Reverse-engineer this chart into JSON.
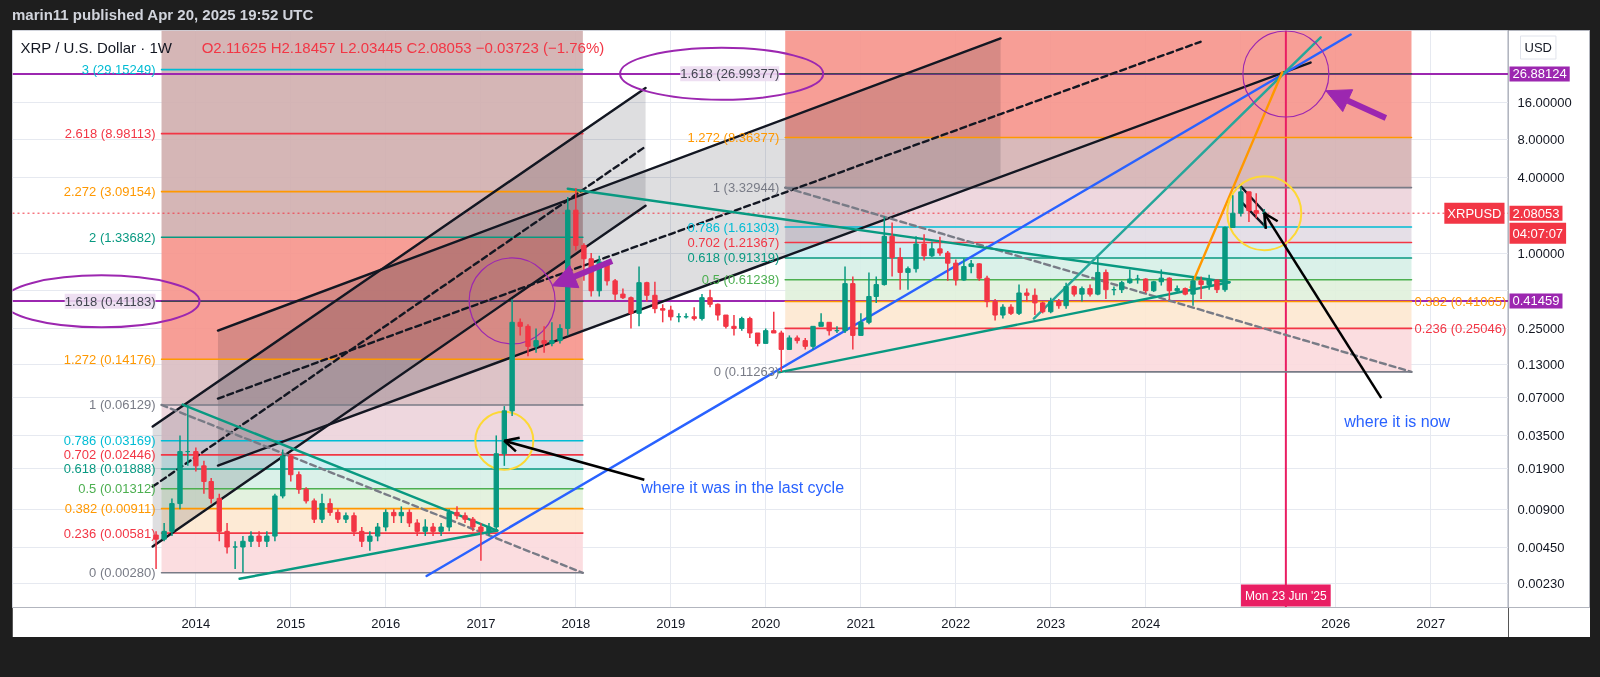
{
  "chart_data": {
    "type": "candlestick",
    "title": "XRP / U.S. Dollar · 1W",
    "subtitle": "O2.11625 H2.18457 L2.03445 C2.08053 −0.03723 (−1.76%)",
    "ylabel": "USD",
    "annotations": [
      "marin11 published Apr 20, 2025 19:52 UTC",
      {
        "text": "where it was in the last cycle",
        "x": "2017-04",
        "y": 0.03169
      },
      {
        "text": "where it is now",
        "x": "2025-04",
        "y": 2.08053
      },
      {
        "text": "XRPUSD",
        "y": 2.08053
      },
      "04:07:07"
    ],
    "log": true,
    "grid": true,
    "xlim": [
      "2012-01-27",
      "2027-10-27"
    ],
    "xticks": [
      "2014",
      "2015",
      "2016",
      "2017",
      "2018",
      "2019",
      "2020",
      "2021",
      "2022",
      "2023",
      "2024",
      {
        "value": "2025",
        "label": null
      },
      "2026",
      "2027"
    ],
    "ylim": [
      0.00148,
      59.8
    ],
    "yticks": [
      {
        "value": 0.0023,
        "label": "0.00230"
      },
      {
        "value": 0.0045,
        "label": "0.00450"
      },
      {
        "value": 0.009,
        "label": "0.00900"
      },
      {
        "value": 0.019,
        "label": "0.01900"
      },
      {
        "value": 0.035,
        "label": "0.03500"
      },
      {
        "value": 0.07,
        "label": "0.07000"
      },
      {
        "value": 0.13,
        "label": "0.13000"
      },
      {
        "value": 0.25,
        "label": "0.25000"
      },
      {
        "value": 0.5,
        "label": null
      },
      {
        "value": 1,
        "label": "1.00000"
      },
      {
        "value": 4,
        "label": "4.00000"
      },
      {
        "value": 8,
        "label": "8.00000"
      },
      {
        "value": 16,
        "label": "16.00000"
      }
    ],
    "ref_lines": [
      {
        "axis": "y",
        "value": 26.88124,
        "label": "26.88124",
        "color": "#9c27b0"
      },
      {
        "axis": "y",
        "value": 0.41459,
        "label": "0.41459",
        "color": "#9c27b0"
      },
      {
        "axis": "y",
        "value": 2.08053,
        "label": "2.08053",
        "color": "#f23645",
        "line_style": "dotted"
      },
      {
        "axis": "x",
        "value": "2025-06-23",
        "label": "Mon 23 Jun '25",
        "color": "#e91e63"
      }
    ],
    "x": [
      "2013-08",
      "2013-09",
      "2013-10",
      "2013-11",
      "2013-12",
      "2014-01",
      "2014-02",
      "2014-03",
      "2014-04",
      "2014-05",
      "2014-06",
      "2014-07",
      "2014-08",
      "2014-09",
      "2014-10",
      "2014-11",
      "2014-12",
      "2015-01",
      "2015-02",
      "2015-03",
      "2015-04",
      "2015-05",
      "2015-06",
      "2015-07",
      "2015-08",
      "2015-09",
      "2015-10",
      "2015-11",
      "2015-12",
      "2016-01",
      "2016-02",
      "2016-03",
      "2016-04",
      "2016-05",
      "2016-06",
      "2016-07",
      "2016-08",
      "2016-09",
      "2016-10",
      "2016-11",
      "2016-12",
      "2017-01",
      "2017-02",
      "2017-03",
      "2017-04",
      "2017-05",
      "2017-06",
      "2017-07",
      "2017-08",
      "2017-09",
      "2017-10",
      "2017-11",
      "2017-12",
      "2018-01",
      "2018-02",
      "2018-03",
      "2018-04",
      "2018-05",
      "2018-06",
      "2018-07",
      "2018-08",
      "2018-09",
      "2018-10",
      "2018-11",
      "2018-12",
      "2019-01",
      "2019-02",
      "2019-03",
      "2019-04",
      "2019-05",
      "2019-06",
      "2019-07",
      "2019-08",
      "2019-09",
      "2019-10",
      "2019-11",
      "2019-12",
      "2020-01",
      "2020-02",
      "2020-03",
      "2020-04",
      "2020-05",
      "2020-06",
      "2020-07",
      "2020-08",
      "2020-09",
      "2020-10",
      "2020-11",
      "2020-12",
      "2021-01",
      "2021-02",
      "2021-03",
      "2021-04",
      "2021-05",
      "2021-06",
      "2021-07",
      "2021-08",
      "2021-09",
      "2021-10",
      "2021-11",
      "2021-12",
      "2022-01",
      "2022-02",
      "2022-03",
      "2022-04",
      "2022-05",
      "2022-06",
      "2022-07",
      "2022-08",
      "2022-09",
      "2022-10",
      "2022-11",
      "2022-12",
      "2023-01",
      "2023-02",
      "2023-03",
      "2023-04",
      "2023-05",
      "2023-06",
      "2023-07",
      "2023-08",
      "2023-09",
      "2023-10",
      "2023-11",
      "2023-12",
      "2024-01",
      "2024-02",
      "2024-03",
      "2024-04",
      "2024-05",
      "2024-06",
      "2024-07",
      "2024-08",
      "2024-09",
      "2024-10",
      "2024-11",
      "2024-12",
      "2025-01",
      "2025-02",
      "2025-03",
      "2025-04"
    ],
    "ohlc": [
      [
        0.0056,
        0.006,
        0.003,
        0.0052
      ],
      [
        0.0052,
        0.007,
        0.005,
        0.006
      ],
      [
        0.006,
        0.011,
        0.0055,
        0.01
      ],
      [
        0.01,
        0.035,
        0.009,
        0.026
      ],
      [
        0.026,
        0.0613,
        0.02,
        0.026
      ],
      [
        0.026,
        0.028,
        0.018,
        0.02
      ],
      [
        0.02,
        0.022,
        0.012,
        0.015
      ],
      [
        0.015,
        0.016,
        0.01,
        0.011
      ],
      [
        0.011,
        0.012,
        0.005,
        0.006
      ],
      [
        0.006,
        0.007,
        0.004,
        0.0045
      ],
      [
        0.0045,
        0.005,
        0.003,
        0.0045
      ],
      [
        0.0045,
        0.0055,
        0.0028,
        0.005
      ],
      [
        0.005,
        0.006,
        0.0045,
        0.0055
      ],
      [
        0.0055,
        0.006,
        0.0045,
        0.005
      ],
      [
        0.005,
        0.006,
        0.0045,
        0.0055
      ],
      [
        0.0055,
        0.012,
        0.005,
        0.0115
      ],
      [
        0.0115,
        0.027,
        0.011,
        0.024
      ],
      [
        0.024,
        0.025,
        0.015,
        0.017
      ],
      [
        0.017,
        0.018,
        0.012,
        0.013
      ],
      [
        0.013,
        0.0135,
        0.01,
        0.0105
      ],
      [
        0.0105,
        0.011,
        0.007,
        0.0075
      ],
      [
        0.0075,
        0.012,
        0.007,
        0.01
      ],
      [
        0.01,
        0.011,
        0.008,
        0.0085
      ],
      [
        0.0085,
        0.009,
        0.007,
        0.0075
      ],
      [
        0.0075,
        0.0085,
        0.007,
        0.008
      ],
      [
        0.008,
        0.0085,
        0.0055,
        0.006
      ],
      [
        0.006,
        0.0065,
        0.0045,
        0.005
      ],
      [
        0.005,
        0.006,
        0.0042,
        0.0055
      ],
      [
        0.0055,
        0.007,
        0.005,
        0.0065
      ],
      [
        0.0065,
        0.009,
        0.006,
        0.0085
      ],
      [
        0.0085,
        0.009,
        0.007,
        0.008
      ],
      [
        0.008,
        0.0095,
        0.007,
        0.0085
      ],
      [
        0.0085,
        0.009,
        0.0065,
        0.007
      ],
      [
        0.007,
        0.0075,
        0.0055,
        0.006
      ],
      [
        0.006,
        0.0075,
        0.0055,
        0.0065
      ],
      [
        0.0065,
        0.007,
        0.0055,
        0.006
      ],
      [
        0.006,
        0.007,
        0.0055,
        0.0065
      ],
      [
        0.0065,
        0.009,
        0.006,
        0.0085
      ],
      [
        0.0085,
        0.0095,
        0.0075,
        0.008
      ],
      [
        0.008,
        0.0085,
        0.007,
        0.0075
      ],
      [
        0.0075,
        0.0078,
        0.006,
        0.0065
      ],
      [
        0.0065,
        0.007,
        0.0035,
        0.006
      ],
      [
        0.006,
        0.007,
        0.0055,
        0.0065
      ],
      [
        0.0065,
        0.035,
        0.006,
        0.025
      ],
      [
        0.025,
        0.06,
        0.02,
        0.055
      ],
      [
        0.055,
        0.43,
        0.05,
        0.28
      ],
      [
        0.28,
        0.3,
        0.22,
        0.26
      ],
      [
        0.26,
        0.27,
        0.15,
        0.18
      ],
      [
        0.18,
        0.25,
        0.16,
        0.2
      ],
      [
        0.2,
        0.26,
        0.16,
        0.19
      ],
      [
        0.19,
        0.28,
        0.18,
        0.2
      ],
      [
        0.2,
        0.27,
        0.19,
        0.25
      ],
      [
        0.25,
        2.8,
        0.22,
        2.2
      ],
      [
        2.2,
        3.3,
        1.05,
        1.15
      ],
      [
        1.15,
        1.2,
        0.6,
        0.9
      ],
      [
        0.9,
        1.0,
        0.45,
        0.5
      ],
      [
        0.5,
        0.95,
        0.45,
        0.85
      ],
      [
        0.85,
        0.88,
        0.55,
        0.6
      ],
      [
        0.6,
        0.62,
        0.42,
        0.47
      ],
      [
        0.47,
        0.52,
        0.43,
        0.44
      ],
      [
        0.44,
        0.45,
        0.25,
        0.33
      ],
      [
        0.33,
        0.78,
        0.26,
        0.58
      ],
      [
        0.58,
        0.59,
        0.41,
        0.46
      ],
      [
        0.46,
        0.59,
        0.33,
        0.36
      ],
      [
        0.36,
        0.39,
        0.28,
        0.35
      ],
      [
        0.35,
        0.38,
        0.29,
        0.31
      ],
      [
        0.31,
        0.33,
        0.28,
        0.31
      ],
      [
        0.31,
        0.33,
        0.3,
        0.31
      ],
      [
        0.31,
        0.37,
        0.29,
        0.3
      ],
      [
        0.3,
        0.47,
        0.29,
        0.44
      ],
      [
        0.44,
        0.51,
        0.37,
        0.39
      ],
      [
        0.39,
        0.395,
        0.29,
        0.32
      ],
      [
        0.32,
        0.32,
        0.25,
        0.26
      ],
      [
        0.26,
        0.32,
        0.22,
        0.25
      ],
      [
        0.25,
        0.31,
        0.24,
        0.3
      ],
      [
        0.3,
        0.31,
        0.21,
        0.23
      ],
      [
        0.23,
        0.23,
        0.18,
        0.19
      ],
      [
        0.19,
        0.25,
        0.19,
        0.24
      ],
      [
        0.24,
        0.34,
        0.23,
        0.23
      ],
      [
        0.23,
        0.24,
        0.1126,
        0.17
      ],
      [
        0.17,
        0.22,
        0.17,
        0.21
      ],
      [
        0.21,
        0.22,
        0.19,
        0.2
      ],
      [
        0.2,
        0.21,
        0.17,
        0.18
      ],
      [
        0.18,
        0.26,
        0.17,
        0.26
      ],
      [
        0.26,
        0.33,
        0.26,
        0.28
      ],
      [
        0.28,
        0.28,
        0.22,
        0.24
      ],
      [
        0.24,
        0.26,
        0.23,
        0.24
      ],
      [
        0.24,
        0.78,
        0.23,
        0.57
      ],
      [
        0.57,
        0.65,
        0.17,
        0.22
      ],
      [
        0.22,
        0.33,
        0.22,
        0.28
      ],
      [
        0.28,
        0.7,
        0.27,
        0.45
      ],
      [
        0.45,
        0.65,
        0.4,
        0.56
      ],
      [
        0.56,
        1.96,
        0.55,
        1.36
      ],
      [
        1.36,
        1.75,
        0.65,
        0.92
      ],
      [
        0.92,
        1.1,
        0.51,
        0.7
      ],
      [
        0.7,
        0.78,
        0.51,
        0.75
      ],
      [
        0.75,
        1.36,
        0.7,
        1.18
      ],
      [
        1.18,
        1.41,
        0.87,
        0.95
      ],
      [
        0.95,
        1.23,
        0.93,
        1.08
      ],
      [
        1.08,
        1.35,
        0.95,
        1.0
      ],
      [
        1.0,
        1.04,
        0.6,
        0.83
      ],
      [
        0.83,
        0.89,
        0.55,
        0.61
      ],
      [
        0.61,
        0.91,
        0.6,
        0.78
      ],
      [
        0.78,
        0.88,
        0.69,
        0.82
      ],
      [
        0.82,
        0.83,
        0.6,
        0.63
      ],
      [
        0.63,
        0.66,
        0.37,
        0.41
      ],
      [
        0.41,
        0.43,
        0.29,
        0.32
      ],
      [
        0.32,
        0.39,
        0.3,
        0.37
      ],
      [
        0.37,
        0.39,
        0.32,
        0.33
      ],
      [
        0.33,
        0.56,
        0.32,
        0.48
      ],
      [
        0.48,
        0.52,
        0.41,
        0.46
      ],
      [
        0.46,
        0.52,
        0.32,
        0.4
      ],
      [
        0.4,
        0.41,
        0.33,
        0.34
      ],
      [
        0.34,
        0.44,
        0.33,
        0.41
      ],
      [
        0.41,
        0.43,
        0.36,
        0.38
      ],
      [
        0.38,
        0.58,
        0.36,
        0.54
      ],
      [
        0.54,
        0.55,
        0.45,
        0.47
      ],
      [
        0.47,
        0.54,
        0.41,
        0.52
      ],
      [
        0.52,
        0.56,
        0.45,
        0.47
      ],
      [
        0.47,
        0.93,
        0.46,
        0.7
      ],
      [
        0.7,
        0.74,
        0.43,
        0.51
      ],
      [
        0.51,
        0.54,
        0.46,
        0.51
      ],
      [
        0.51,
        0.6,
        0.48,
        0.58
      ],
      [
        0.58,
        0.74,
        0.57,
        0.62
      ],
      [
        0.62,
        0.67,
        0.57,
        0.62
      ],
      [
        0.62,
        0.63,
        0.48,
        0.5
      ],
      [
        0.5,
        0.6,
        0.49,
        0.59
      ],
      [
        0.59,
        0.74,
        0.55,
        0.63
      ],
      [
        0.63,
        0.64,
        0.42,
        0.5
      ],
      [
        0.5,
        0.55,
        0.48,
        0.52
      ],
      [
        0.52,
        0.53,
        0.46,
        0.47
      ],
      [
        0.47,
        0.64,
        0.38,
        0.6
      ],
      [
        0.6,
        0.65,
        0.43,
        0.56
      ],
      [
        0.56,
        0.67,
        0.51,
        0.61
      ],
      [
        0.61,
        0.61,
        0.48,
        0.51
      ],
      [
        0.51,
        1.63,
        0.49,
        1.6
      ],
      [
        1.6,
        2.9,
        1.6,
        2.08
      ],
      [
        2.08,
        3.4,
        1.96,
        3.08
      ],
      [
        3.08,
        3.08,
        1.77,
        2.18
      ],
      [
        2.18,
        3.0,
        1.9,
        2.08
      ],
      [
        2.08,
        2.25,
        1.61,
        2.08053
      ]
    ],
    "series": [
      {
        "type": "line",
        "x": [
          "2013-08-22",
          "2018-01-28"
        ],
        "values": [
          null,
          null
        ],
        "lower": [
          0.06129,
          0.06129
        ],
        "upper": [
          0.14176,
          0.14176
        ],
        "color": "#d9bcc1"
      },
      {
        "type": "line",
        "x": [
          "2013-08-22",
          "2018-01-28"
        ],
        "values": [
          null,
          null
        ],
        "lower": [
          0.14176,
          0.14176
        ],
        "upper": [
          1.33682,
          1.33682
        ],
        "color": "#f6948b"
      },
      {
        "type": "line",
        "x": [
          "2013-08-22",
          "2018-01-28"
        ],
        "values": [
          null,
          null
        ],
        "lower": [
          1.33682,
          1.33682
        ],
        "upper": [
          59.8,
          59.8
        ],
        "color": "#d0aeae"
      },
      {
        "type": "line",
        "x": [
          "2020-03-16",
          "2026-10-19"
        ],
        "values": [
          null,
          null
        ],
        "lower": [
          3.32944,
          3.32944
        ],
        "upper": [
          8.36377,
          8.36377
        ],
        "color": "#d5b1b3"
      },
      {
        "type": "line",
        "x": [
          "2020-03-16",
          "2026-10-19"
        ],
        "values": [
          null,
          null
        ],
        "lower": [
          8.36377,
          8.36377
        ],
        "upper": [
          59.8,
          59.8
        ],
        "color": "#f6948b"
      },
      {
        "type": "line",
        "x": [
          "2013-08-22",
          "2018-01-28"
        ],
        "values": [
          null,
          null
        ],
        "lower": [
          0.0028,
          0.0028
        ],
        "upper": [
          0.00581,
          0.00581
        ],
        "color": "#fbd9dd"
      },
      {
        "type": "line",
        "x": [
          "2013-08-22",
          "2018-01-28"
        ],
        "values": [
          null,
          null
        ],
        "lower": [
          0.00581,
          0.00581
        ],
        "upper": [
          0.00911,
          0.00911
        ],
        "color": "#fde8d0"
      },
      {
        "type": "line",
        "x": [
          "2013-08-22",
          "2018-01-28"
        ],
        "values": [
          null,
          null
        ],
        "lower": [
          0.00911,
          0.00911
        ],
        "upper": [
          0.01312,
          0.01312
        ],
        "color": "#e0f1dc"
      },
      {
        "type": "line",
        "x": [
          "2013-08-22",
          "2018-01-28"
        ],
        "values": [
          null,
          null
        ],
        "lower": [
          0.01312,
          0.01312
        ],
        "upper": [
          0.01888,
          0.01888
        ],
        "color": "#d6efe7"
      },
      {
        "type": "line",
        "x": [
          "2013-08-22",
          "2018-01-28"
        ],
        "values": [
          null,
          null
        ],
        "lower": [
          0.01888,
          0.01888
        ],
        "upper": [
          0.02446,
          0.02446
        ],
        "color": "#cdeff3"
      },
      {
        "type": "line",
        "x": [
          "2013-08-22",
          "2018-01-28"
        ],
        "values": [
          null,
          null
        ],
        "lower": [
          0.02446,
          0.02446
        ],
        "upper": [
          0.03169,
          0.03169
        ],
        "color": "#e2dbe4"
      },
      {
        "type": "line",
        "x": [
          "2013-08-22",
          "2018-01-28"
        ],
        "values": [
          null,
          null
        ],
        "lower": [
          0.03169,
          0.03169
        ],
        "upper": [
          0.06129,
          0.06129
        ],
        "color": "#ecd3da"
      },
      {
        "type": "line",
        "x": [
          "2020-03-16",
          "2026-10-19"
        ],
        "values": [
          null,
          null
        ],
        "lower": [
          0.11263,
          0.11263
        ],
        "upper": [
          0.25046,
          0.25046
        ],
        "color": "#fbd9dd"
      },
      {
        "type": "line",
        "x": [
          "2020-03-16",
          "2026-10-19"
        ],
        "values": [
          null,
          null
        ],
        "lower": [
          0.25046,
          0.25046
        ],
        "upper": [
          0.41065,
          0.41065
        ],
        "color": "#fde8d0"
      },
      {
        "type": "line",
        "x": [
          "2020-03-16",
          "2026-10-19"
        ],
        "values": [
          null,
          null
        ],
        "lower": [
          0.41065,
          0.41065
        ],
        "upper": [
          0.61238,
          0.61238
        ],
        "color": "#e0f1dc"
      },
      {
        "type": "line",
        "x": [
          "2020-03-16",
          "2026-10-19"
        ],
        "values": [
          null,
          null
        ],
        "lower": [
          0.61238,
          0.61238
        ],
        "upper": [
          0.91319,
          0.91319
        ],
        "color": "#d6efe7"
      },
      {
        "type": "line",
        "x": [
          "2020-03-16",
          "2026-10-19"
        ],
        "values": [
          null,
          null
        ],
        "lower": [
          0.91319,
          0.91319
        ],
        "upper": [
          1.21367,
          1.21367
        ],
        "color": "#cdeff3"
      },
      {
        "type": "line",
        "x": [
          "2020-03-16",
          "2026-10-19"
        ],
        "values": [
          null,
          null
        ],
        "lower": [
          1.21367,
          1.21367
        ],
        "upper": [
          1.61303,
          1.61303
        ],
        "color": "#e2dbe4"
      },
      {
        "type": "line",
        "x": [
          "2020-03-16",
          "2026-10-19"
        ],
        "values": [
          null,
          null
        ],
        "lower": [
          1.61303,
          1.61303
        ],
        "upper": [
          3.32944,
          3.32944
        ],
        "color": "#ecd3da"
      },
      {
        "type": "line",
        "name": "0 (0.00280)",
        "color": "#787b86",
        "x": [
          "2013-08-22",
          "2018-01-28"
        ],
        "values": [
          0.0028,
          0.0028
        ]
      },
      {
        "type": "line",
        "name": "0.236 (0.00581)",
        "color": "#f23645",
        "x": [
          "2013-08-22",
          "2018-01-28"
        ],
        "values": [
          0.00581,
          0.00581
        ]
      },
      {
        "type": "line",
        "name": "0.382 (0.00911)",
        "color": "#ff9800",
        "x": [
          "2013-08-22",
          "2018-01-28"
        ],
        "values": [
          0.00911,
          0.00911
        ]
      },
      {
        "type": "line",
        "name": "0.5 (0.01312)",
        "color": "#4caf50",
        "x": [
          "2013-08-22",
          "2018-01-28"
        ],
        "values": [
          0.01312,
          0.01312
        ]
      },
      {
        "type": "line",
        "name": "0.618 (0.01888)",
        "color": "#089981",
        "x": [
          "2013-08-22",
          "2018-01-28"
        ],
        "values": [
          0.01888,
          0.01888
        ]
      },
      {
        "type": "line",
        "name": "0.702 (0.02446)",
        "color": "#f23645",
        "x": [
          "2013-08-22",
          "2018-01-28"
        ],
        "values": [
          0.02446,
          0.02446
        ]
      },
      {
        "type": "line",
        "name": "0.786 (0.03169)",
        "color": "#00bcd4",
        "x": [
          "2013-08-22",
          "2018-01-28"
        ],
        "values": [
          0.03169,
          0.03169
        ]
      },
      {
        "type": "line",
        "name": "1 (0.06129)",
        "color": "#787b86",
        "x": [
          "2013-08-22",
          "2018-01-28"
        ],
        "values": [
          0.06129,
          0.06129
        ]
      },
      {
        "type": "line",
        "name": "1.272 (0.14176)",
        "color": "#ff9800",
        "x": [
          "2013-08-22",
          "2018-01-28"
        ],
        "values": [
          0.14176,
          0.14176
        ]
      },
      {
        "type": "line",
        "name": "1.618 (0.41183)",
        "color": "#434651",
        "x": [
          "2013-08-22",
          "2018-01-28"
        ],
        "values": [
          0.41183,
          0.41183
        ]
      },
      {
        "type": "line",
        "name": "2 (1.33682)",
        "color": "#089981",
        "x": [
          "2013-08-22",
          "2018-01-28"
        ],
        "values": [
          1.33682,
          1.33682
        ]
      },
      {
        "type": "line",
        "name": "2.272 (3.09154)",
        "color": "#ff9800",
        "x": [
          "2013-08-22",
          "2018-01-28"
        ],
        "values": [
          3.09154,
          3.09154
        ]
      },
      {
        "type": "line",
        "name": "2.618 (8.98113)",
        "color": "#f23645",
        "x": [
          "2013-08-22",
          "2018-01-28"
        ],
        "values": [
          8.98113,
          8.98113
        ]
      },
      {
        "type": "line",
        "name": "3 (29.15249)",
        "color": "#00bcd4",
        "x": [
          "2013-08-22",
          "2018-01-28"
        ],
        "values": [
          29.15249,
          29.15249
        ]
      },
      {
        "type": "line",
        "name": "0 (0.11263)",
        "color": "#787b86",
        "x": [
          "2020-03-16",
          "2026-10-19"
        ],
        "values": [
          0.11263,
          0.11263
        ]
      },
      {
        "type": "line",
        "name": "0.236 (0.25046)",
        "color": "#f23645",
        "x": [
          "2020-03-16",
          "2026-10-19"
        ],
        "values": [
          0.25046,
          0.25046
        ]
      },
      {
        "type": "line",
        "name": "0.382 (0.41065)",
        "color": "#ff9800",
        "x": [
          "2020-03-16",
          "2026-10-19"
        ],
        "values": [
          0.41065,
          0.41065
        ]
      },
      {
        "type": "line",
        "name": "0.5 (0.61238)",
        "color": "#4caf50",
        "x": [
          "2020-03-16",
          "2026-10-19"
        ],
        "values": [
          0.61238,
          0.61238
        ]
      },
      {
        "type": "line",
        "name": "0.618 (0.91319)",
        "color": "#089981",
        "x": [
          "2020-03-16",
          "2026-10-19"
        ],
        "values": [
          0.91319,
          0.91319
        ]
      },
      {
        "type": "line",
        "name": "0.702 (1.21367)",
        "color": "#f23645",
        "x": [
          "2020-03-16",
          "2026-10-19"
        ],
        "values": [
          1.21367,
          1.21367
        ]
      },
      {
        "type": "line",
        "name": "0.786 (1.61303)",
        "color": "#00bcd4",
        "x": [
          "2020-03-16",
          "2026-10-19"
        ],
        "values": [
          1.61303,
          1.61303
        ]
      },
      {
        "type": "line",
        "name": "1 (3.32944)",
        "color": "#787b86",
        "x": [
          "2020-03-16",
          "2026-10-19"
        ],
        "values": [
          3.32944,
          3.32944
        ]
      },
      {
        "type": "line",
        "name": "1.272 (8.36377)",
        "color": "#ff9800",
        "x": [
          "2020-03-16",
          "2026-10-19"
        ],
        "values": [
          8.36377,
          8.36377
        ]
      },
      {
        "type": "line",
        "name": "1.618 (26.99377)",
        "color": "#434651",
        "x": [
          "2020-03-16",
          "2026-10-19"
        ],
        "values": [
          26.99377,
          26.99377
        ]
      },
      {
        "type": "line",
        "x": [
          "2013-07-19",
          "2018-09-26"
        ],
        "values": [
          0.0412,
          20.8
        ],
        "color": "#131722"
      },
      {
        "type": "line",
        "x": [
          "2013-07-19",
          "2018-09-26"
        ],
        "values": [
          0.01367,
          7.08
        ],
        "lower": [
          0.00454,
          2.39
        ],
        "upper": [
          0.0412,
          20.8
        ],
        "color": "#131722",
        "line_style": "dashed"
      },
      {
        "type": "line",
        "x": [
          "2013-07-19",
          "2018-09-26"
        ],
        "values": [
          0.00454,
          2.39
        ],
        "color": "#131722"
      },
      {
        "type": "line",
        "x": [
          "2014-03-27",
          "2022-06-22"
        ],
        "values": [
          0.2405,
          51.7
        ],
        "color": "#131722"
      },
      {
        "type": "line",
        "x": [
          "2014-03-27",
          "2022-06-22",
          "2024-07-30"
        ],
        "values": [
          0.0689,
          12.87,
          48.6
        ],
        "lower": [
          0.0201,
          4.06,
          null
        ],
        "upper": [
          0.2405,
          51.7,
          null
        ],
        "color": "#131722",
        "line_style": "dashed"
      },
      {
        "type": "line",
        "x": [
          "2014-03-27",
          "2025-09-26"
        ],
        "values": [
          0.0201,
          33.2
        ],
        "color": "#131722"
      },
      {
        "type": "line",
        "x": [
          "2013-08-22",
          "2018-01-28"
        ],
        "values": [
          0.06129,
          0.0028
        ],
        "color": "#787b86",
        "line_style": "dashed"
      },
      {
        "type": "line",
        "x": [
          "2020-03-16",
          "2026-10-19"
        ],
        "values": [
          3.32944,
          0.11263
        ],
        "color": "#787b86",
        "line_style": "dashed"
      },
      {
        "type": "line",
        "x": [
          "2016-06-06",
          "2026-02-27"
        ],
        "values": [
          0.002643,
          55.5
        ],
        "color": "#2962ff"
      },
      {
        "type": "line",
        "x": [
          "2013-11-11",
          "2017-03-05"
        ],
        "values": [
          0.0617,
          0.00609
        ],
        "color": "#089981"
      },
      {
        "type": "line",
        "x": [
          "2014-06-18",
          "2017-03-05"
        ],
        "values": [
          0.00251,
          0.00609
        ],
        "color": "#089981"
      },
      {
        "type": "line",
        "x": [
          "2017-12-01",
          "2024-11-18"
        ],
        "values": [
          3.26,
          0.585
        ],
        "color": "#089981"
      },
      {
        "type": "line",
        "x": [
          "2020-02-20",
          "2024-11-18"
        ],
        "values": [
          0.1116,
          0.585
        ],
        "color": "#089981"
      },
      {
        "type": "line",
        "x": [
          "2022-10-28",
          "2025-11-04"
        ],
        "values": [
          0.3,
          52.8
        ],
        "color": "#26a69a"
      },
      {
        "type": "line",
        "x": [
          "2024-06-22",
          "2025-06-09"
        ],
        "values": [
          0.533,
          27.8
        ],
        "color": "#ff9800"
      },
      {
        "type": "line",
        "x": [
          "2024-12-29",
          "2025-04-07"
        ],
        "values": [
          3.46,
          2.06
        ],
        "color": "#131722"
      },
      {
        "type": "line",
        "x": [
          "2024-12-29",
          "2025-04-07"
        ],
        "values": [
          2.62,
          1.61
        ],
        "color": "#131722"
      }
    ]
  }
}
